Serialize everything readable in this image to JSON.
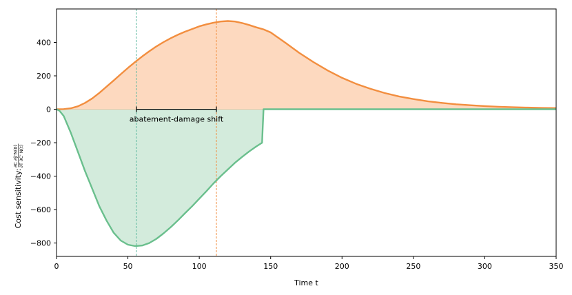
{
  "chart_data": {
    "type": "area",
    "xlabel": "Time t",
    "ylabel_prefix": "Cost sensitivity: ",
    "ylabel_fraction": {
      "numerator": "∂C ∂ỹ'N(0)",
      "denominator": "∂T ∂C' N(t)"
    },
    "xlim": [
      0,
      350
    ],
    "ylim": [
      -880,
      600
    ],
    "xticks": [
      0,
      50,
      100,
      150,
      200,
      250,
      300,
      350
    ],
    "yticks": [
      -800,
      -600,
      -400,
      -200,
      0,
      200,
      400
    ],
    "ytick_labels": [
      "−800",
      "−600",
      "−400",
      "−200",
      "0",
      "200",
      "400"
    ],
    "grid": false,
    "series": [
      {
        "color": "#f28e3f",
        "fill": "#fdd9bf",
        "x": [
          0,
          5,
          10,
          15,
          20,
          25,
          30,
          35,
          40,
          45,
          50,
          55,
          60,
          65,
          70,
          75,
          80,
          85,
          90,
          95,
          100,
          105,
          110,
          115,
          120,
          125,
          130,
          135,
          140,
          145,
          150,
          160,
          170,
          180,
          190,
          200,
          210,
          220,
          230,
          240,
          250,
          260,
          270,
          280,
          290,
          300,
          310,
          320,
          330,
          340,
          350
        ],
        "y": [
          0,
          1,
          6,
          18,
          38,
          65,
          98,
          135,
          172,
          210,
          247,
          282,
          316,
          347,
          376,
          402,
          425,
          446,
          464,
          480,
          496,
          508,
          518,
          525,
          528,
          525,
          516,
          504,
          490,
          478,
          460,
          400,
          338,
          282,
          232,
          188,
          152,
          122,
          97,
          77,
          61,
          48,
          38,
          30,
          24,
          19,
          15,
          12,
          10,
          8,
          7
        ]
      },
      {
        "color": "#6abf8d",
        "fill": "#d3ebdc",
        "x": [
          0,
          2,
          5,
          10,
          15,
          20,
          25,
          30,
          35,
          40,
          45,
          50,
          55,
          60,
          65,
          70,
          75,
          80,
          85,
          90,
          95,
          100,
          105,
          110,
          115,
          120,
          125,
          130,
          135,
          140,
          144,
          144.5,
          145,
          150,
          200,
          250,
          300,
          350
        ],
        "y": [
          0,
          -8,
          -40,
          -140,
          -255,
          -370,
          -475,
          -580,
          -665,
          -738,
          -785,
          -810,
          -818,
          -815,
          -800,
          -775,
          -742,
          -705,
          -665,
          -622,
          -580,
          -535,
          -490,
          -443,
          -400,
          -360,
          -320,
          -285,
          -252,
          -222,
          -200,
          -100,
          0,
          0,
          0,
          0,
          0,
          0
        ]
      }
    ],
    "vlines": [
      {
        "x": 56,
        "color": "#5fb8a0"
      },
      {
        "x": 112,
        "color": "#f28e3f"
      }
    ],
    "annotation": {
      "text": "abatement-damage shift",
      "x1": 56,
      "x2": 112,
      "y": 0
    }
  }
}
